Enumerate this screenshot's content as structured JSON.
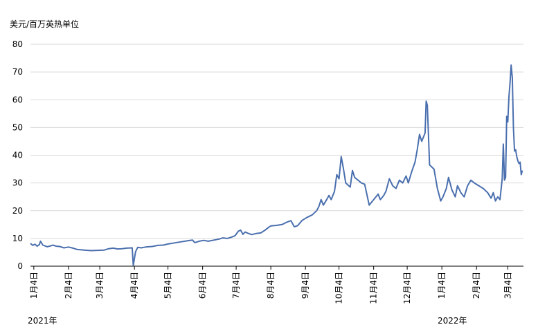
{
  "unit_label": "美元/百万英热单位",
  "year_labels": [
    "2021年",
    "2022年"
  ],
  "chart_data": {
    "type": "line",
    "title": "",
    "xlabel": "",
    "ylabel": "美元/百万英热单位",
    "ylim": [
      0,
      80
    ],
    "yticks": [
      0,
      10,
      20,
      30,
      40,
      50,
      60,
      70,
      80
    ],
    "grid": "horizontal",
    "color": "#4a6fae",
    "xticks": [
      {
        "label": "1月4日",
        "date": "2021-01-04"
      },
      {
        "label": "2月4日",
        "date": "2021-02-04"
      },
      {
        "label": "3月4日",
        "date": "2021-03-04"
      },
      {
        "label": "4月4日",
        "date": "2021-04-04"
      },
      {
        "label": "5月4日",
        "date": "2021-05-04"
      },
      {
        "label": "6月4日",
        "date": "2021-06-04"
      },
      {
        "label": "7月4日",
        "date": "2021-07-04"
      },
      {
        "label": "8月4日",
        "date": "2021-08-04"
      },
      {
        "label": "9月4日",
        "date": "2021-09-04"
      },
      {
        "label": "10月4日",
        "date": "2021-10-04"
      },
      {
        "label": "11月4日",
        "date": "2021-11-04"
      },
      {
        "label": "12月4日",
        "date": "2021-12-04"
      },
      {
        "label": "1月4日",
        "date": "2022-01-04"
      },
      {
        "label": "2月4日",
        "date": "2022-02-04"
      },
      {
        "label": "3月4日",
        "date": "2022-03-04"
      }
    ],
    "xlim": [
      "2021-01-01",
      "2022-03-18"
    ],
    "series": [
      {
        "name": "",
        "points": [
          [
            "2021-01-01",
            8.2
          ],
          [
            "2021-01-03",
            7.5
          ],
          [
            "2021-01-05",
            7.9
          ],
          [
            "2021-01-07",
            7.2
          ],
          [
            "2021-01-09",
            7.8
          ],
          [
            "2021-01-10",
            9.0
          ],
          [
            "2021-01-12",
            7.6
          ],
          [
            "2021-01-16",
            7.0
          ],
          [
            "2021-01-19",
            7.3
          ],
          [
            "2021-01-21",
            7.6
          ],
          [
            "2021-01-24",
            7.2
          ],
          [
            "2021-01-27",
            7.1
          ],
          [
            "2021-01-31",
            6.6
          ],
          [
            "2021-02-04",
            6.9
          ],
          [
            "2021-02-08",
            6.5
          ],
          [
            "2021-02-12",
            6.0
          ],
          [
            "2021-02-18",
            5.8
          ],
          [
            "2021-02-24",
            5.6
          ],
          [
            "2021-03-02",
            5.7
          ],
          [
            "2021-03-08",
            5.8
          ],
          [
            "2021-03-12",
            6.3
          ],
          [
            "2021-03-16",
            6.5
          ],
          [
            "2021-03-20",
            6.2
          ],
          [
            "2021-03-24",
            6.3
          ],
          [
            "2021-03-28",
            6.5
          ],
          [
            "2021-04-02",
            6.6
          ],
          [
            "2021-04-03",
            0.3
          ],
          [
            "2021-04-05",
            5.2
          ],
          [
            "2021-04-07",
            6.8
          ],
          [
            "2021-04-10",
            6.6
          ],
          [
            "2021-04-14",
            6.9
          ],
          [
            "2021-04-20",
            7.1
          ],
          [
            "2021-04-25",
            7.5
          ],
          [
            "2021-04-30",
            7.6
          ],
          [
            "2021-05-04",
            8.0
          ],
          [
            "2021-05-10",
            8.4
          ],
          [
            "2021-05-16",
            8.8
          ],
          [
            "2021-05-22",
            9.2
          ],
          [
            "2021-05-26",
            9.4
          ],
          [
            "2021-05-28",
            8.5
          ],
          [
            "2021-06-01",
            9.0
          ],
          [
            "2021-06-05",
            9.3
          ],
          [
            "2021-06-09",
            9.0
          ],
          [
            "2021-06-14",
            9.4
          ],
          [
            "2021-06-19",
            9.8
          ],
          [
            "2021-06-22",
            10.2
          ],
          [
            "2021-06-26",
            10.0
          ],
          [
            "2021-06-30",
            10.5
          ],
          [
            "2021-07-03",
            11.0
          ],
          [
            "2021-07-06",
            12.6
          ],
          [
            "2021-07-08",
            13.0
          ],
          [
            "2021-07-10",
            11.5
          ],
          [
            "2021-07-12",
            12.3
          ],
          [
            "2021-07-15",
            11.8
          ],
          [
            "2021-07-18",
            11.4
          ],
          [
            "2021-07-22",
            11.8
          ],
          [
            "2021-07-26",
            12.0
          ],
          [
            "2021-07-30",
            13.0
          ],
          [
            "2021-08-02",
            14.0
          ],
          [
            "2021-08-04",
            14.5
          ],
          [
            "2021-08-09",
            14.7
          ],
          [
            "2021-08-14",
            15.0
          ],
          [
            "2021-08-18",
            15.8
          ],
          [
            "2021-08-22",
            16.4
          ],
          [
            "2021-08-25",
            14.2
          ],
          [
            "2021-08-28",
            14.6
          ],
          [
            "2021-09-01",
            16.5
          ],
          [
            "2021-09-05",
            17.5
          ],
          [
            "2021-09-10",
            18.5
          ],
          [
            "2021-09-14",
            20.0
          ],
          [
            "2021-09-16",
            21.5
          ],
          [
            "2021-09-18",
            24.0
          ],
          [
            "2021-09-20",
            22.0
          ],
          [
            "2021-09-23",
            24.0
          ],
          [
            "2021-09-25",
            25.5
          ],
          [
            "2021-09-27",
            24.0
          ],
          [
            "2021-09-30",
            27.0
          ],
          [
            "2021-10-02",
            33.0
          ],
          [
            "2021-10-04",
            31.5
          ],
          [
            "2021-10-06",
            39.5
          ],
          [
            "2021-10-08",
            35.0
          ],
          [
            "2021-10-10",
            30.0
          ],
          [
            "2021-10-14",
            28.5
          ],
          [
            "2021-10-16",
            34.5
          ],
          [
            "2021-10-18",
            32.0
          ],
          [
            "2021-10-21",
            31.0
          ],
          [
            "2021-10-24",
            30.0
          ],
          [
            "2021-10-27",
            29.5
          ],
          [
            "2021-10-31",
            22.0
          ],
          [
            "2021-11-02",
            23.0
          ],
          [
            "2021-11-05",
            24.5
          ],
          [
            "2021-11-08",
            26.0
          ],
          [
            "2021-11-10",
            24.0
          ],
          [
            "2021-11-13",
            25.5
          ],
          [
            "2021-11-15",
            27.0
          ],
          [
            "2021-11-18",
            31.5
          ],
          [
            "2021-11-21",
            29.0
          ],
          [
            "2021-11-24",
            28.0
          ],
          [
            "2021-11-27",
            31.0
          ],
          [
            "2021-11-30",
            30.0
          ],
          [
            "2021-12-03",
            32.5
          ],
          [
            "2021-12-05",
            30.0
          ],
          [
            "2021-12-08",
            34.0
          ],
          [
            "2021-12-11",
            37.5
          ],
          [
            "2021-12-13",
            42.0
          ],
          [
            "2021-12-15",
            47.5
          ],
          [
            "2021-12-17",
            45.0
          ],
          [
            "2021-12-20",
            48.0
          ],
          [
            "2021-12-21",
            59.5
          ],
          [
            "2021-12-22",
            58.0
          ],
          [
            "2021-12-24",
            36.5
          ],
          [
            "2021-12-28",
            35.0
          ],
          [
            "2021-12-31",
            28.0
          ],
          [
            "2022-01-03",
            23.5
          ],
          [
            "2022-01-05",
            25.0
          ],
          [
            "2022-01-08",
            28.0
          ],
          [
            "2022-01-10",
            32.0
          ],
          [
            "2022-01-13",
            27.5
          ],
          [
            "2022-01-16",
            25.0
          ],
          [
            "2022-01-18",
            29.0
          ],
          [
            "2022-01-21",
            26.5
          ],
          [
            "2022-01-24",
            25.0
          ],
          [
            "2022-01-27",
            29.0
          ],
          [
            "2022-01-30",
            31.0
          ],
          [
            "2022-02-02",
            30.0
          ],
          [
            "2022-02-06",
            29.0
          ],
          [
            "2022-02-10",
            28.0
          ],
          [
            "2022-02-14",
            26.5
          ],
          [
            "2022-02-17",
            24.5
          ],
          [
            "2022-02-19",
            26.5
          ],
          [
            "2022-02-21",
            23.5
          ],
          [
            "2022-02-23",
            25.0
          ],
          [
            "2022-02-25",
            24.0
          ],
          [
            "2022-02-27",
            31.5
          ],
          [
            "2022-02-28",
            44.0
          ],
          [
            "2022-03-01",
            31.0
          ],
          [
            "2022-03-02",
            32.0
          ],
          [
            "2022-03-03",
            54.0
          ],
          [
            "2022-03-04",
            52.0
          ],
          [
            "2022-03-05",
            61.0
          ],
          [
            "2022-03-06",
            66.0
          ],
          [
            "2022-03-07",
            72.5
          ],
          [
            "2022-03-08",
            68.0
          ],
          [
            "2022-03-09",
            50.0
          ],
          [
            "2022-03-10",
            41.5
          ],
          [
            "2022-03-11",
            42.0
          ],
          [
            "2022-03-12",
            39.5
          ],
          [
            "2022-03-13",
            38.0
          ],
          [
            "2022-03-14",
            37.0
          ],
          [
            "2022-03-15",
            37.5
          ],
          [
            "2022-03-16",
            33.0
          ],
          [
            "2022-03-17",
            34.5
          ]
        ]
      }
    ]
  }
}
